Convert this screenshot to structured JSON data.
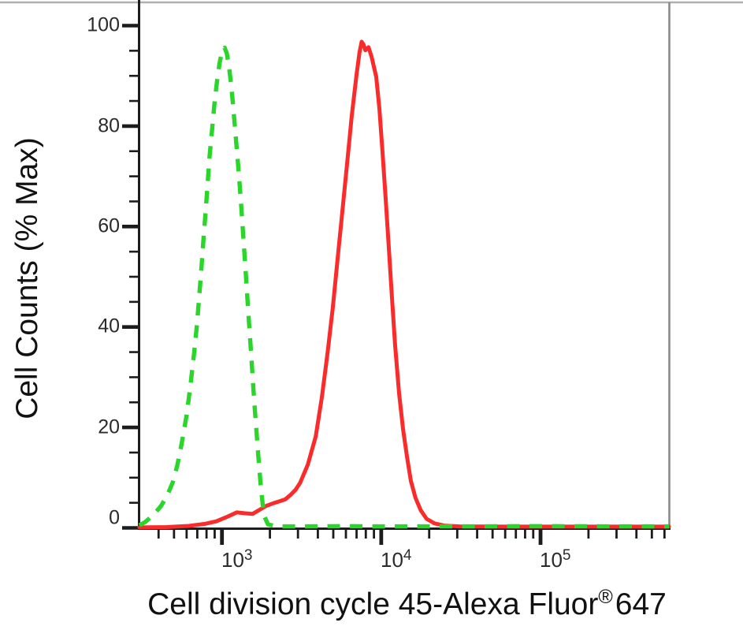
{
  "figure": {
    "ylabel": "Cell Counts (% Max)",
    "xlabel_main": "Cell division cycle 45-Alexa Fluor",
    "xlabel_sup": "®",
    "xlabel_suffix": "647"
  },
  "chart_data": {
    "type": "line",
    "title": "",
    "xlabel": "Cell division cycle 45-Alexa Fluor® 647",
    "ylabel": "Cell Counts (% Max)",
    "xscale": "log",
    "xlim": [
      300,
      640000
    ],
    "ylim": [
      0,
      100
    ],
    "grid": false,
    "legend": "none",
    "yticks_major": [
      0,
      20,
      40,
      60,
      80,
      100
    ],
    "ytick_labels": [
      "0",
      "20",
      "40",
      "60",
      "80",
      "100"
    ],
    "ytick_minor_step": 5,
    "xticks_major": [
      1000,
      10000,
      100000
    ],
    "xtick_labels": [
      {
        "base": "10",
        "exp": "3"
      },
      {
        "base": "10",
        "exp": "4"
      },
      {
        "base": "10",
        "exp": "5"
      }
    ],
    "xtick_minor_mantissas": [
      2,
      3,
      4,
      5,
      6,
      7,
      8,
      9
    ],
    "colors": {
      "red_curve": "#f92b2b",
      "green_curve": "#2bd62b",
      "axis": "#1c1c1c",
      "tick_text": "#2b2b2b",
      "border_top": "#b0b0b0",
      "border_right": "#8a8a8a"
    },
    "series": [
      {
        "name": "red-solid-histogram",
        "color": "#f92b2b",
        "line_style": "solid",
        "points": [
          [
            303,
            0.1
          ],
          [
            450,
            0.15
          ],
          [
            620,
            0.4
          ],
          [
            780,
            0.8
          ],
          [
            920,
            1.3
          ],
          [
            1060,
            2.1
          ],
          [
            1240,
            3.1
          ],
          [
            1400,
            2.9
          ],
          [
            1560,
            2.8
          ],
          [
            1720,
            3.6
          ],
          [
            1900,
            4.4
          ],
          [
            2100,
            4.9
          ],
          [
            2300,
            5.3
          ],
          [
            2500,
            5.7
          ],
          [
            2700,
            6.6
          ],
          [
            2900,
            7.6
          ],
          [
            3100,
            9.0
          ],
          [
            3460,
            12.6
          ],
          [
            3880,
            18.2
          ],
          [
            4240,
            26.0
          ],
          [
            4600,
            34.8
          ],
          [
            4970,
            44.0
          ],
          [
            5320,
            53.6
          ],
          [
            5700,
            63.0
          ],
          [
            6100,
            72.5
          ],
          [
            6530,
            82.0
          ],
          [
            7000,
            90.2
          ],
          [
            7300,
            94.6
          ],
          [
            7530,
            96.8
          ],
          [
            7750,
            96.2
          ],
          [
            7950,
            95.1
          ],
          [
            8320,
            95.7
          ],
          [
            8700,
            93.8
          ],
          [
            9300,
            89.8
          ],
          [
            9730,
            83.5
          ],
          [
            10180,
            75.0
          ],
          [
            10660,
            65.5
          ],
          [
            11150,
            56.0
          ],
          [
            11680,
            45.8
          ],
          [
            12230,
            36.3
          ],
          [
            12940,
            26.8
          ],
          [
            13700,
            19.7
          ],
          [
            14500,
            14.2
          ],
          [
            15340,
            9.4
          ],
          [
            16400,
            6.0
          ],
          [
            17700,
            3.5
          ],
          [
            19250,
            1.8
          ],
          [
            21600,
            0.9
          ],
          [
            24900,
            0.45
          ],
          [
            31000,
            0.3
          ],
          [
            64000,
            0.25
          ],
          [
            160000,
            0.25
          ],
          [
            400000,
            0.25
          ],
          [
            640000,
            0.25
          ]
        ]
      },
      {
        "name": "green-dashed-histogram",
        "color": "#2bd62b",
        "line_style": "dashed",
        "points": [
          [
            303,
            0.5
          ],
          [
            330,
            1.2
          ],
          [
            370,
            2.5
          ],
          [
            415,
            4.4
          ],
          [
            455,
            6.6
          ],
          [
            490,
            9.0
          ],
          [
            525,
            12.5
          ],
          [
            560,
            17.0
          ],
          [
            600,
            22.5
          ],
          [
            635,
            28.5
          ],
          [
            670,
            35.0
          ],
          [
            697,
            40.5
          ],
          [
            724,
            47.0
          ],
          [
            746,
            52.5
          ],
          [
            768,
            58.0
          ],
          [
            790,
            63.0
          ],
          [
            813,
            68.5
          ],
          [
            836,
            74.0
          ],
          [
            868,
            79.5
          ],
          [
            900,
            85.0
          ],
          [
            932,
            89.0
          ],
          [
            965,
            92.5
          ],
          [
            1000,
            94.8
          ],
          [
            1040,
            95.6
          ],
          [
            1072,
            94.5
          ],
          [
            1105,
            92.0
          ],
          [
            1140,
            88.5
          ],
          [
            1175,
            84.0
          ],
          [
            1212,
            79.0
          ],
          [
            1250,
            74.0
          ],
          [
            1290,
            68.5
          ],
          [
            1330,
            62.8
          ],
          [
            1370,
            56.8
          ],
          [
            1412,
            50.5
          ],
          [
            1455,
            44.2
          ],
          [
            1500,
            38.0
          ],
          [
            1546,
            31.6
          ],
          [
            1594,
            25.3
          ],
          [
            1644,
            19.5
          ],
          [
            1695,
            14.0
          ],
          [
            1748,
            8.8
          ],
          [
            1802,
            4.7
          ],
          [
            1858,
            2.1
          ],
          [
            1945,
            0.7
          ],
          [
            2200,
            0.3
          ],
          [
            3200,
            0.3
          ],
          [
            5600,
            0.35
          ],
          [
            10000,
            0.3
          ],
          [
            32000,
            0.3
          ],
          [
            100000,
            0.35
          ],
          [
            320000,
            0.3
          ],
          [
            640000,
            0.3
          ]
        ]
      }
    ]
  }
}
